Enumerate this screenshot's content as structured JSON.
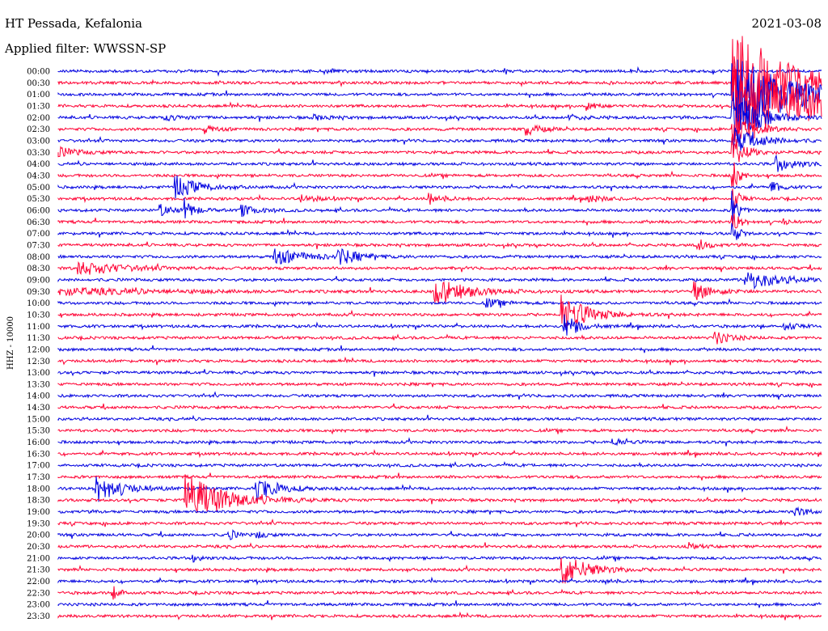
{
  "header": {
    "station": "HT Pessada, Kefalonia",
    "date": "2021-03-08",
    "filter": "Applied filter: WWSSN-SP"
  },
  "chart_data": {
    "type": "line",
    "title": "HT Pessada, Kefalonia",
    "subtitle": "Applied filter: WWSSN-SP",
    "date": "2021-03-08",
    "ylabel": "HHZ - 10000",
    "xlabel": "",
    "colors": [
      "#0000e0",
      "#ff0033"
    ],
    "grid": false,
    "legend": "none",
    "row_labels": [
      "00:00",
      "00:30",
      "01:00",
      "01:30",
      "02:00",
      "02:30",
      "03:00",
      "03:30",
      "04:00",
      "04:30",
      "05:00",
      "05:30",
      "06:00",
      "06:30",
      "07:00",
      "07:30",
      "08:00",
      "08:30",
      "09:00",
      "09:30",
      "10:00",
      "10:30",
      "11:00",
      "11:30",
      "12:00",
      "12:30",
      "13:00",
      "13:30",
      "14:00",
      "14:30",
      "15:00",
      "15:30",
      "16:00",
      "16:30",
      "17:00",
      "17:30",
      "18:00",
      "18:30",
      "19:00",
      "19:30",
      "20:00",
      "20:30",
      "21:00",
      "21:30",
      "22:00",
      "22:30",
      "23:00",
      "23:30"
    ],
    "trace_minutes": 30,
    "events": [
      {
        "row": 0,
        "minute": 10.5,
        "amp": 0.3,
        "dur": 0.5
      },
      {
        "row": 1,
        "minute": 26.5,
        "amp": 5.5,
        "dur": 4.0
      },
      {
        "row": 2,
        "minute": 26.5,
        "amp": 3.5,
        "dur": 5.0
      },
      {
        "row": 3,
        "minute": 20.8,
        "amp": 0.5,
        "dur": 0.6
      },
      {
        "row": 3,
        "minute": 26.5,
        "amp": 4.0,
        "dur": 6.0
      },
      {
        "row": 4,
        "minute": 4.2,
        "amp": 0.2,
        "dur": 2.0
      },
      {
        "row": 4,
        "minute": 10.0,
        "amp": 0.2,
        "dur": 1.5
      },
      {
        "row": 4,
        "minute": 20.0,
        "amp": 0.2,
        "dur": 1.5
      },
      {
        "row": 4,
        "minute": 26.5,
        "amp": 2.5,
        "dur": 2.0
      },
      {
        "row": 5,
        "minute": 5.8,
        "amp": 0.3,
        "dur": 1.0
      },
      {
        "row": 5,
        "minute": 18.4,
        "amp": 0.6,
        "dur": 1.0
      },
      {
        "row": 5,
        "minute": 26.5,
        "amp": 1.5,
        "dur": 1.5
      },
      {
        "row": 6,
        "minute": 26.5,
        "amp": 1.2,
        "dur": 2.0
      },
      {
        "row": 7,
        "minute": 0.0,
        "amp": 0.4,
        "dur": 1.6
      },
      {
        "row": 7,
        "minute": 26.5,
        "amp": 1.5,
        "dur": 1.0
      },
      {
        "row": 8,
        "minute": 28.2,
        "amp": 0.7,
        "dur": 1.6
      },
      {
        "row": 9,
        "minute": 26.5,
        "amp": 1.5,
        "dur": 0.5
      },
      {
        "row": 10,
        "minute": 4.6,
        "amp": 1.0,
        "dur": 1.8
      },
      {
        "row": 10,
        "minute": 28.0,
        "amp": 0.7,
        "dur": 0.6
      },
      {
        "row": 11,
        "minute": 9.5,
        "amp": 0.3,
        "dur": 1.5
      },
      {
        "row": 11,
        "minute": 14.6,
        "amp": 0.5,
        "dur": 1.0
      },
      {
        "row": 11,
        "minute": 20.8,
        "amp": 0.4,
        "dur": 1.0
      },
      {
        "row": 11,
        "minute": 26.5,
        "amp": 1.2,
        "dur": 0.5
      },
      {
        "row": 12,
        "minute": 4.0,
        "amp": 0.5,
        "dur": 1.0
      },
      {
        "row": 12,
        "minute": 5.0,
        "amp": 0.8,
        "dur": 0.8
      },
      {
        "row": 12,
        "minute": 7.2,
        "amp": 0.5,
        "dur": 1.2
      },
      {
        "row": 12,
        "minute": 26.5,
        "amp": 1.5,
        "dur": 0.5
      },
      {
        "row": 13,
        "minute": 26.5,
        "amp": 1.2,
        "dur": 0.5
      },
      {
        "row": 13,
        "minute": 28.5,
        "amp": 0.3,
        "dur": 0.4
      },
      {
        "row": 14,
        "minute": 26.5,
        "amp": 1.0,
        "dur": 0.5
      },
      {
        "row": 15,
        "minute": 25.1,
        "amp": 0.6,
        "dur": 0.8
      },
      {
        "row": 16,
        "minute": 8.5,
        "amp": 0.7,
        "dur": 2.5
      },
      {
        "row": 16,
        "minute": 11.0,
        "amp": 0.7,
        "dur": 1.5
      },
      {
        "row": 17,
        "minute": 0.8,
        "amp": 0.6,
        "dur": 3.5
      },
      {
        "row": 18,
        "minute": 27.0,
        "amp": 0.9,
        "dur": 2.5
      },
      {
        "row": 19,
        "minute": 0.0,
        "amp": 0.3,
        "dur": 8.0
      },
      {
        "row": 19,
        "minute": 14.8,
        "amp": 1.2,
        "dur": 2.5
      },
      {
        "row": 19,
        "minute": 25.0,
        "amp": 0.8,
        "dur": 1.5
      },
      {
        "row": 20,
        "minute": 16.8,
        "amp": 0.4,
        "dur": 1.2
      },
      {
        "row": 21,
        "minute": 19.8,
        "amp": 1.8,
        "dur": 2.0
      },
      {
        "row": 22,
        "minute": 19.9,
        "amp": 1.2,
        "dur": 1.0
      },
      {
        "row": 22,
        "minute": 28.5,
        "amp": 0.4,
        "dur": 1.0
      },
      {
        "row": 23,
        "minute": 25.8,
        "amp": 0.6,
        "dur": 1.2
      },
      {
        "row": 32,
        "minute": 21.8,
        "amp": 0.3,
        "dur": 1.0
      },
      {
        "row": 36,
        "minute": 1.5,
        "amp": 1.2,
        "dur": 2.0
      },
      {
        "row": 36,
        "minute": 7.8,
        "amp": 1.0,
        "dur": 1.8
      },
      {
        "row": 37,
        "minute": 5.0,
        "amp": 2.4,
        "dur": 3.0
      },
      {
        "row": 38,
        "minute": 29.0,
        "amp": 0.4,
        "dur": 1.0
      },
      {
        "row": 40,
        "minute": 6.7,
        "amp": 0.6,
        "dur": 0.5
      },
      {
        "row": 40,
        "minute": 7.8,
        "amp": 0.4,
        "dur": 0.6
      },
      {
        "row": 41,
        "minute": 24.8,
        "amp": 0.3,
        "dur": 0.6
      },
      {
        "row": 42,
        "minute": 5.3,
        "amp": 0.4,
        "dur": 0.6
      },
      {
        "row": 43,
        "minute": 19.8,
        "amp": 1.5,
        "dur": 2.0
      },
      {
        "row": 44,
        "minute": 21.5,
        "amp": 0.3,
        "dur": 0.6
      },
      {
        "row": 45,
        "minute": 2.2,
        "amp": 0.5,
        "dur": 0.6
      }
    ]
  }
}
